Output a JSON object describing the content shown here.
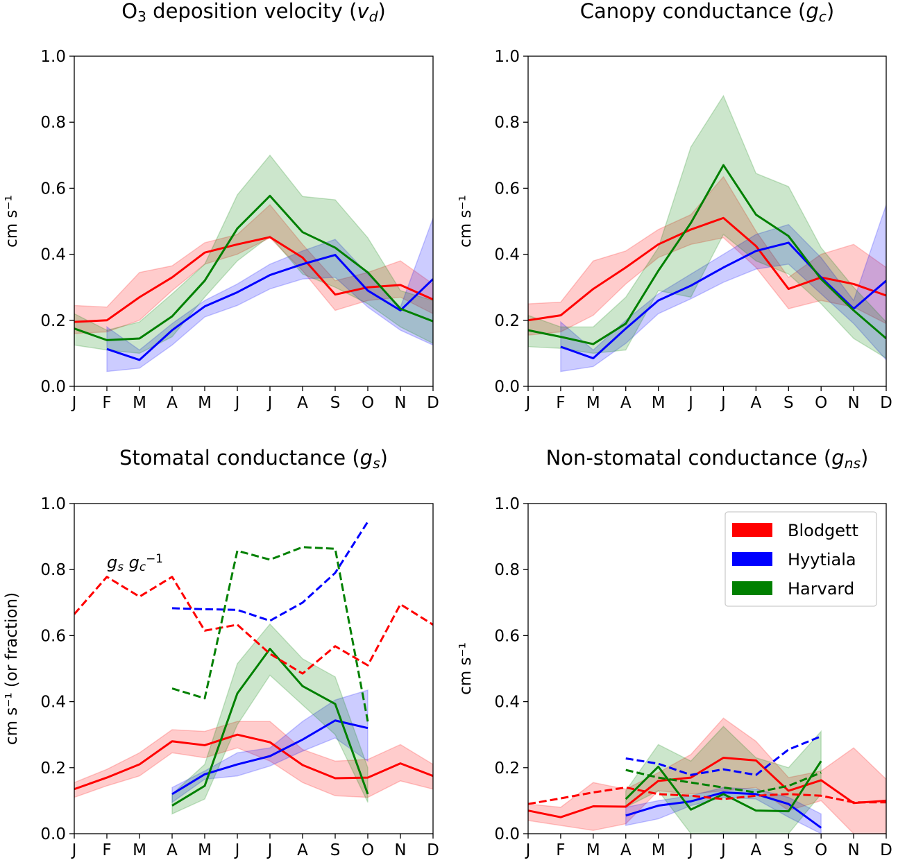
{
  "colors": {
    "Blodgett": "#ff0000",
    "Hyytiala": "#0000ff",
    "Harvard": "#008000"
  },
  "months": [
    "J",
    "F",
    "M",
    "A",
    "M",
    "J",
    "J",
    "A",
    "S",
    "O",
    "N",
    "D"
  ],
  "legend": {
    "placement": "top-right",
    "panel": 3,
    "entries": [
      "Blodgett",
      "Hyytiala",
      "Harvard"
    ]
  },
  "chart_data": [
    {
      "type": "line",
      "title": [
        {
          "t": "O"
        },
        {
          "t": "3",
          "sub": true
        },
        {
          "t": "  deposition velocity ("
        },
        {
          "t": "v",
          "it": true
        },
        {
          "t": "d",
          "it": true,
          "sub": true
        },
        {
          "t": ")"
        }
      ],
      "ylabel": "cm s⁻¹",
      "ylim": [
        0,
        1.0
      ],
      "yticks": [
        "0.0",
        "0.2",
        "0.4",
        "0.6",
        "0.8",
        "1.0"
      ],
      "series": [
        {
          "name": "Blodgett",
          "style": "solid",
          "values": [
            0.195,
            0.2,
            0.27,
            0.33,
            0.405,
            0.43,
            0.452,
            0.39,
            0.278,
            0.3,
            0.307,
            0.263
          ],
          "upper": [
            0.245,
            0.24,
            0.345,
            0.365,
            0.435,
            0.46,
            0.55,
            0.43,
            0.32,
            0.345,
            0.38,
            0.31
          ],
          "lower": [
            0.16,
            0.165,
            0.2,
            0.29,
            0.37,
            0.4,
            0.45,
            0.35,
            0.23,
            0.26,
            0.27,
            0.22
          ]
        },
        {
          "name": "Hyytiala",
          "style": "solid",
          "values": [
            null,
            0.113,
            0.08,
            0.17,
            0.242,
            0.285,
            0.337,
            0.37,
            0.398,
            0.29,
            0.23,
            0.325
          ],
          "upper": [
            null,
            0.18,
            0.11,
            0.19,
            0.26,
            0.31,
            0.37,
            0.41,
            0.445,
            0.34,
            0.24,
            0.51
          ],
          "lower": [
            null,
            0.045,
            0.055,
            0.125,
            0.21,
            0.245,
            0.295,
            0.325,
            0.33,
            0.24,
            0.17,
            0.125
          ]
        },
        {
          "name": "Harvard",
          "style": "solid",
          "values": [
            0.175,
            0.14,
            0.145,
            0.212,
            0.32,
            0.478,
            0.577,
            0.467,
            0.42,
            0.345,
            0.235,
            0.197
          ],
          "upper": [
            0.22,
            0.17,
            0.195,
            0.28,
            0.37,
            0.58,
            0.7,
            0.575,
            0.565,
            0.45,
            0.29,
            0.26
          ],
          "lower": [
            0.125,
            0.11,
            0.1,
            0.15,
            0.27,
            0.38,
            0.455,
            0.34,
            0.3,
            0.25,
            0.18,
            0.13
          ]
        }
      ]
    },
    {
      "type": "line",
      "title": [
        {
          "t": "Canopy  conductance  ("
        },
        {
          "t": "g",
          "it": true
        },
        {
          "t": "c",
          "it": true,
          "sub": true
        },
        {
          "t": ")"
        }
      ],
      "ylabel": "cm s⁻¹",
      "ylim": [
        0,
        1.0
      ],
      "yticks": [
        "0.0",
        "0.2",
        "0.4",
        "0.6",
        "0.8",
        "1.0"
      ],
      "series": [
        {
          "name": "Blodgett",
          "style": "solid",
          "values": [
            0.2,
            0.215,
            0.295,
            0.36,
            0.43,
            0.475,
            0.51,
            0.425,
            0.295,
            0.33,
            0.31,
            0.275
          ],
          "upper": [
            0.25,
            0.255,
            0.38,
            0.41,
            0.475,
            0.52,
            0.635,
            0.47,
            0.33,
            0.4,
            0.43,
            0.36
          ],
          "lower": [
            0.155,
            0.165,
            0.215,
            0.31,
            0.39,
            0.43,
            0.45,
            0.36,
            0.235,
            0.26,
            0.24,
            0.19
          ]
        },
        {
          "name": "Hyytiala",
          "style": "solid",
          "values": [
            null,
            0.12,
            0.085,
            0.175,
            0.26,
            0.305,
            0.36,
            0.41,
            0.435,
            0.33,
            0.235,
            0.32
          ],
          "upper": [
            null,
            0.195,
            0.11,
            0.2,
            0.28,
            0.34,
            0.4,
            0.46,
            0.49,
            0.39,
            0.26,
            0.55
          ],
          "lower": [
            null,
            0.045,
            0.06,
            0.13,
            0.22,
            0.265,
            0.315,
            0.355,
            0.37,
            0.28,
            0.19,
            0.08
          ]
        },
        {
          "name": "Harvard",
          "style": "solid",
          "values": [
            0.17,
            0.15,
            0.128,
            0.19,
            0.35,
            0.495,
            0.67,
            0.52,
            0.455,
            0.325,
            0.23,
            0.145
          ],
          "upper": [
            0.215,
            0.18,
            0.18,
            0.27,
            0.42,
            0.725,
            0.88,
            0.645,
            0.605,
            0.42,
            0.3,
            0.195
          ],
          "lower": [
            0.12,
            0.115,
            0.1,
            0.11,
            0.29,
            0.27,
            0.46,
            0.38,
            0.34,
            0.25,
            0.145,
            0.085
          ]
        }
      ]
    },
    {
      "type": "line",
      "title": [
        {
          "t": "Stomatal  conductance  ("
        },
        {
          "t": "g",
          "it": true
        },
        {
          "t": "s",
          "it": true,
          "sub": true
        },
        {
          "t": ")"
        }
      ],
      "ylabel": "cm s⁻¹ (or fraction)",
      "ylim": [
        0,
        1.0
      ],
      "yticks": [
        "0.0",
        "0.2",
        "0.4",
        "0.6",
        "0.8",
        "1.0"
      ],
      "annotation": {
        "parts": [
          {
            "t": "g",
            "it": true
          },
          {
            "t": "s",
            "it": true,
            "sub": true
          },
          {
            "t": " g",
            "it": true
          },
          {
            "t": "c",
            "it": true,
            "sub": true
          },
          {
            "t": "−1",
            "sup": true
          }
        ],
        "x": "F",
        "y": 0.8
      },
      "series": [
        {
          "name": "Blodgett",
          "style": "solid",
          "values": [
            0.135,
            0.17,
            0.21,
            0.28,
            0.268,
            0.3,
            0.277,
            0.208,
            0.168,
            0.17,
            0.213,
            0.175
          ],
          "upper": [
            0.155,
            0.195,
            0.245,
            0.315,
            0.31,
            0.34,
            0.34,
            0.255,
            0.22,
            0.225,
            0.27,
            0.21
          ],
          "lower": [
            0.11,
            0.145,
            0.175,
            0.245,
            0.23,
            0.26,
            0.22,
            0.155,
            0.115,
            0.11,
            0.16,
            0.135
          ]
        },
        {
          "name": "Hyytiala",
          "style": "solid",
          "values": [
            null,
            null,
            null,
            0.12,
            0.18,
            0.21,
            0.235,
            0.285,
            0.343,
            0.32,
            null,
            null
          ],
          "upper": [
            null,
            null,
            null,
            0.14,
            0.19,
            0.245,
            0.26,
            0.34,
            0.405,
            0.435,
            null,
            null
          ],
          "lower": [
            null,
            null,
            null,
            0.095,
            0.165,
            0.175,
            0.205,
            0.25,
            0.29,
            0.22,
            null,
            null
          ]
        },
        {
          "name": "Harvard",
          "style": "solid",
          "values": [
            null,
            null,
            null,
            0.085,
            0.145,
            0.425,
            0.56,
            0.447,
            0.393,
            0.12,
            null,
            null
          ],
          "upper": [
            null,
            null,
            null,
            0.12,
            0.21,
            0.515,
            0.635,
            0.53,
            0.475,
            0.2,
            null,
            null
          ],
          "lower": [
            null,
            null,
            null,
            0.06,
            0.105,
            0.33,
            0.48,
            0.39,
            0.3,
            0.095,
            null,
            null
          ]
        },
        {
          "name": "Blodgett",
          "style": "dashed",
          "values": [
            0.665,
            0.778,
            0.718,
            0.778,
            0.615,
            0.633,
            0.545,
            0.485,
            0.568,
            0.51,
            0.695,
            0.633
          ]
        },
        {
          "name": "Hyytiala",
          "style": "dashed",
          "values": [
            null,
            null,
            null,
            0.683,
            0.68,
            0.678,
            0.645,
            0.7,
            0.79,
            0.945,
            null,
            null
          ]
        },
        {
          "name": "Harvard",
          "style": "dashed",
          "values": [
            null,
            null,
            null,
            0.44,
            0.41,
            0.857,
            0.83,
            0.868,
            0.863,
            0.34,
            null,
            null
          ]
        }
      ]
    },
    {
      "type": "line",
      "title": [
        {
          "t": "Non-stomatal  conductance  ("
        },
        {
          "t": "g",
          "it": true
        },
        {
          "t": "ns",
          "it": true,
          "sub": true
        },
        {
          "t": ")"
        }
      ],
      "ylabel": "cm s⁻¹",
      "ylim": [
        0,
        1.0
      ],
      "yticks": [
        "0.0",
        "0.2",
        "0.4",
        "0.6",
        "0.8",
        "1.0"
      ],
      "series": [
        {
          "name": "Blodgett",
          "style": "solid",
          "values": [
            0.07,
            0.05,
            0.083,
            0.082,
            0.16,
            0.17,
            0.23,
            0.222,
            0.13,
            0.162,
            0.093,
            0.1
          ],
          "upper": [
            0.09,
            0.08,
            0.155,
            0.135,
            0.185,
            0.24,
            0.35,
            0.28,
            0.17,
            0.19,
            0.26,
            0.165
          ],
          "lower": [
            0.04,
            0.025,
            0.01,
            0.03,
            0.13,
            0.12,
            0.13,
            0.14,
            0.07,
            0.1,
            0.0,
            0.0
          ]
        },
        {
          "name": "Hyytiala",
          "style": "solid",
          "values": [
            null,
            null,
            null,
            0.055,
            0.085,
            0.098,
            0.125,
            0.12,
            0.09,
            0.018,
            null,
            null
          ],
          "upper": [
            null,
            null,
            null,
            0.08,
            0.1,
            0.115,
            0.14,
            0.135,
            0.11,
            0.06,
            null,
            null
          ],
          "lower": [
            null,
            null,
            null,
            0.025,
            0.045,
            0.085,
            0.11,
            0.105,
            0.05,
            0.0,
            null,
            null
          ]
        },
        {
          "name": "Harvard",
          "style": "solid",
          "values": [
            null,
            null,
            null,
            0.105,
            0.203,
            0.073,
            0.12,
            0.07,
            0.068,
            0.22,
            null,
            null
          ],
          "upper": [
            null,
            null,
            null,
            0.13,
            0.27,
            0.22,
            0.325,
            0.23,
            0.2,
            0.31,
            null,
            null
          ],
          "lower": [
            null,
            null,
            null,
            0.08,
            0.13,
            0.0,
            0.0,
            0.0,
            0.0,
            0.12,
            null,
            null
          ]
        },
        {
          "name": "Blodgett",
          "style": "dashed",
          "values": [
            0.09,
            0.107,
            0.125,
            0.14,
            0.12,
            0.115,
            0.105,
            0.115,
            0.12,
            0.115,
            0.095,
            0.095
          ]
        },
        {
          "name": "Hyytiala",
          "style": "dashed",
          "values": [
            null,
            null,
            null,
            0.228,
            0.212,
            0.178,
            0.195,
            0.178,
            0.255,
            0.295,
            null,
            null
          ]
        },
        {
          "name": "Harvard",
          "style": "dashed",
          "values": [
            null,
            null,
            null,
            0.193,
            0.17,
            0.155,
            0.14,
            0.125,
            0.145,
            0.185,
            null,
            null
          ]
        }
      ]
    }
  ]
}
